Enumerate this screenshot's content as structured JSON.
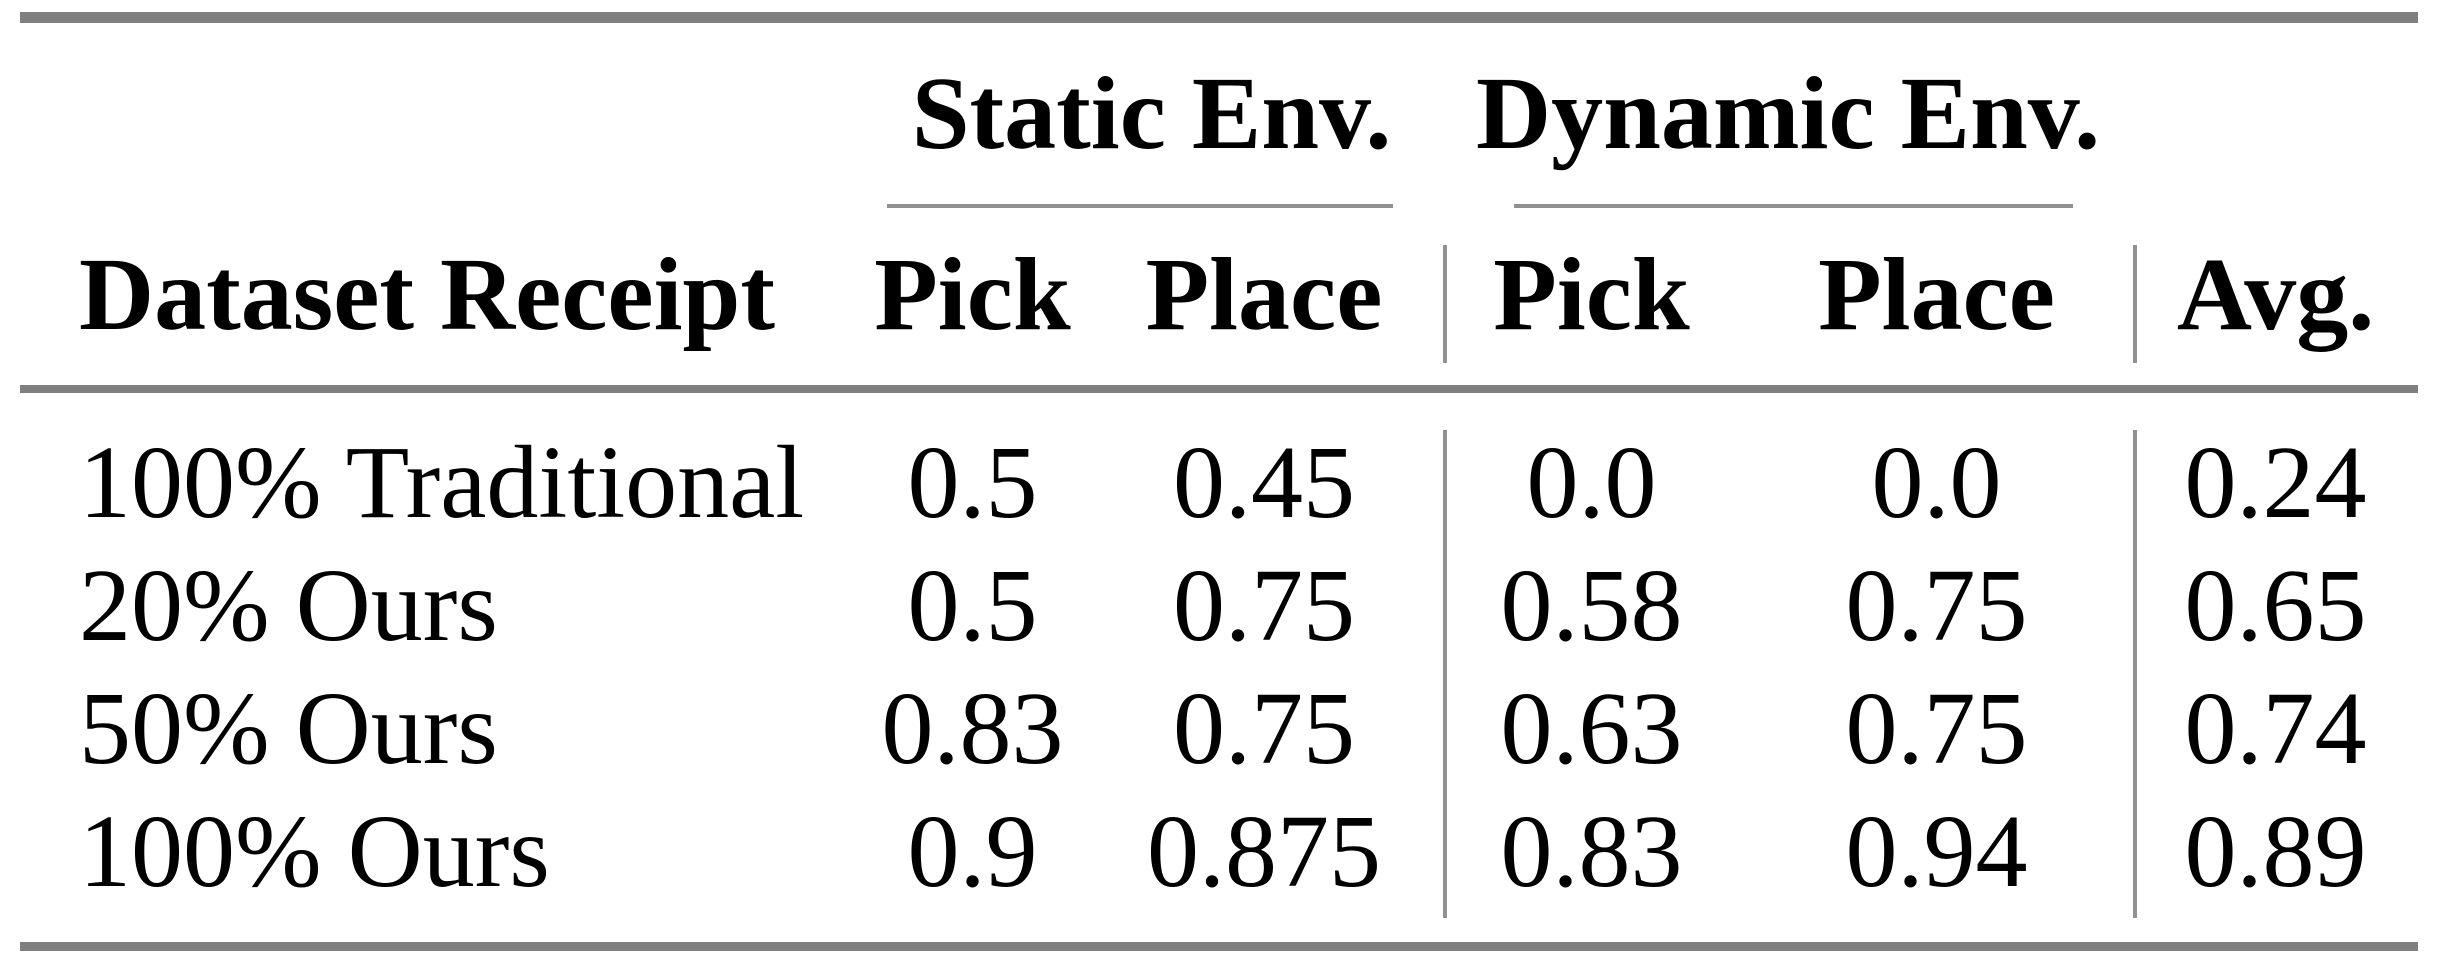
{
  "table": {
    "group_header": {
      "static": "Static Env.",
      "dynamic": "Dynamic Env."
    },
    "columns": [
      "Dataset Receipt",
      "Pick",
      "Place",
      "Pick",
      "Place",
      "Avg."
    ],
    "rows": [
      {
        "cells": [
          "100% Traditional",
          "0.5",
          "0.45",
          "0.0",
          "0.0",
          "0.24"
        ]
      },
      {
        "cells": [
          "20% Ours",
          "0.5",
          "0.75",
          "0.58",
          "0.75",
          "0.65"
        ]
      },
      {
        "cells": [
          "50% Ours",
          "0.83",
          "0.75",
          "0.63",
          "0.75",
          "0.74"
        ]
      },
      {
        "cells": [
          "100% Ours",
          "0.9",
          "0.875",
          "0.83",
          "0.94",
          "0.89"
        ]
      }
    ]
  },
  "colors": {
    "text": "#000000",
    "background": "#ffffff",
    "rule_thick": "#7f7f7f",
    "rule_thin": "#919191"
  }
}
